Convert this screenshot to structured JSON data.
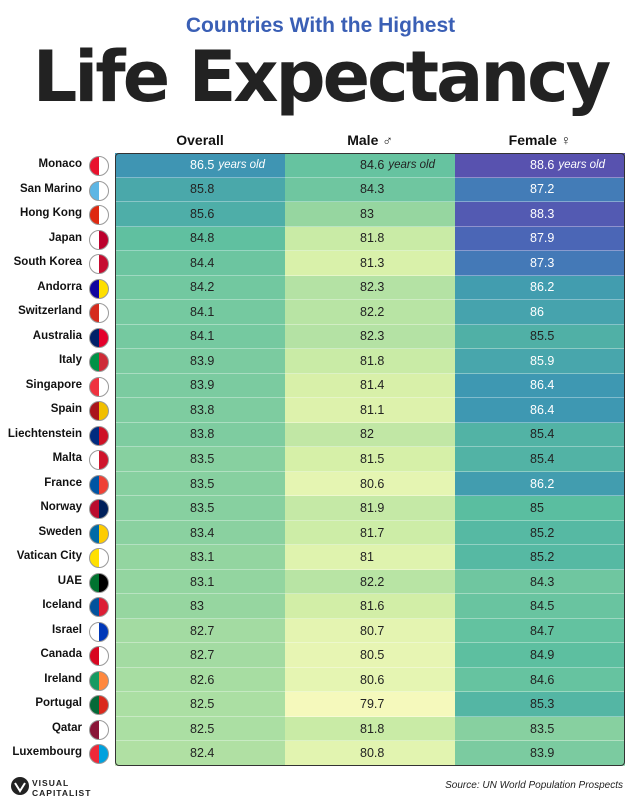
{
  "header": {
    "subtitle": "Countries With the Highest",
    "title": "Life Expectancy"
  },
  "table": {
    "columns": [
      "Overall",
      "Male ♂",
      "Female ♀"
    ],
    "unit": "years old",
    "rows": [
      [
        "Monaco",
        86.5,
        84.6,
        88.6
      ],
      [
        "San Marino",
        85.8,
        84.3,
        87.2
      ],
      [
        "Hong Kong",
        85.6,
        83.0,
        88.3
      ],
      [
        "Japan",
        84.8,
        81.8,
        87.9
      ],
      [
        "South Korea",
        84.4,
        81.3,
        87.3
      ],
      [
        "Andorra",
        84.2,
        82.3,
        86.2
      ],
      [
        "Switzerland",
        84.1,
        82.2,
        86.0
      ],
      [
        "Australia",
        84.1,
        82.3,
        85.5
      ],
      [
        "Italy",
        83.9,
        81.8,
        85.9
      ],
      [
        "Singapore",
        83.9,
        81.4,
        86.4
      ],
      [
        "Spain",
        83.8,
        81.1,
        86.4
      ],
      [
        "Liechtenstein",
        83.8,
        82.0,
        85.4
      ],
      [
        "Malta",
        83.5,
        81.5,
        85.4
      ],
      [
        "France",
        83.5,
        80.6,
        86.2
      ],
      [
        "Norway",
        83.5,
        81.9,
        85.0
      ],
      [
        "Sweden",
        83.4,
        81.7,
        85.2
      ],
      [
        "Vatican City",
        83.1,
        81.0,
        85.2
      ],
      [
        "UAE",
        83.1,
        82.2,
        84.3
      ],
      [
        "Iceland",
        83.0,
        81.6,
        84.5
      ],
      [
        "Israel",
        82.7,
        80.7,
        84.7
      ],
      [
        "Canada",
        82.7,
        80.5,
        84.9
      ],
      [
        "Ireland",
        82.6,
        80.6,
        84.6
      ],
      [
        "Portugal",
        82.5,
        79.7,
        85.3
      ],
      [
        "Qatar",
        82.5,
        81.8,
        83.5
      ],
      [
        "Luxembourg",
        82.4,
        80.8,
        83.9
      ]
    ]
  },
  "footer": {
    "brand": [
      "VISUAL",
      "CAPITALIST"
    ],
    "source": "Source: UN World Population Prospects"
  }
}
